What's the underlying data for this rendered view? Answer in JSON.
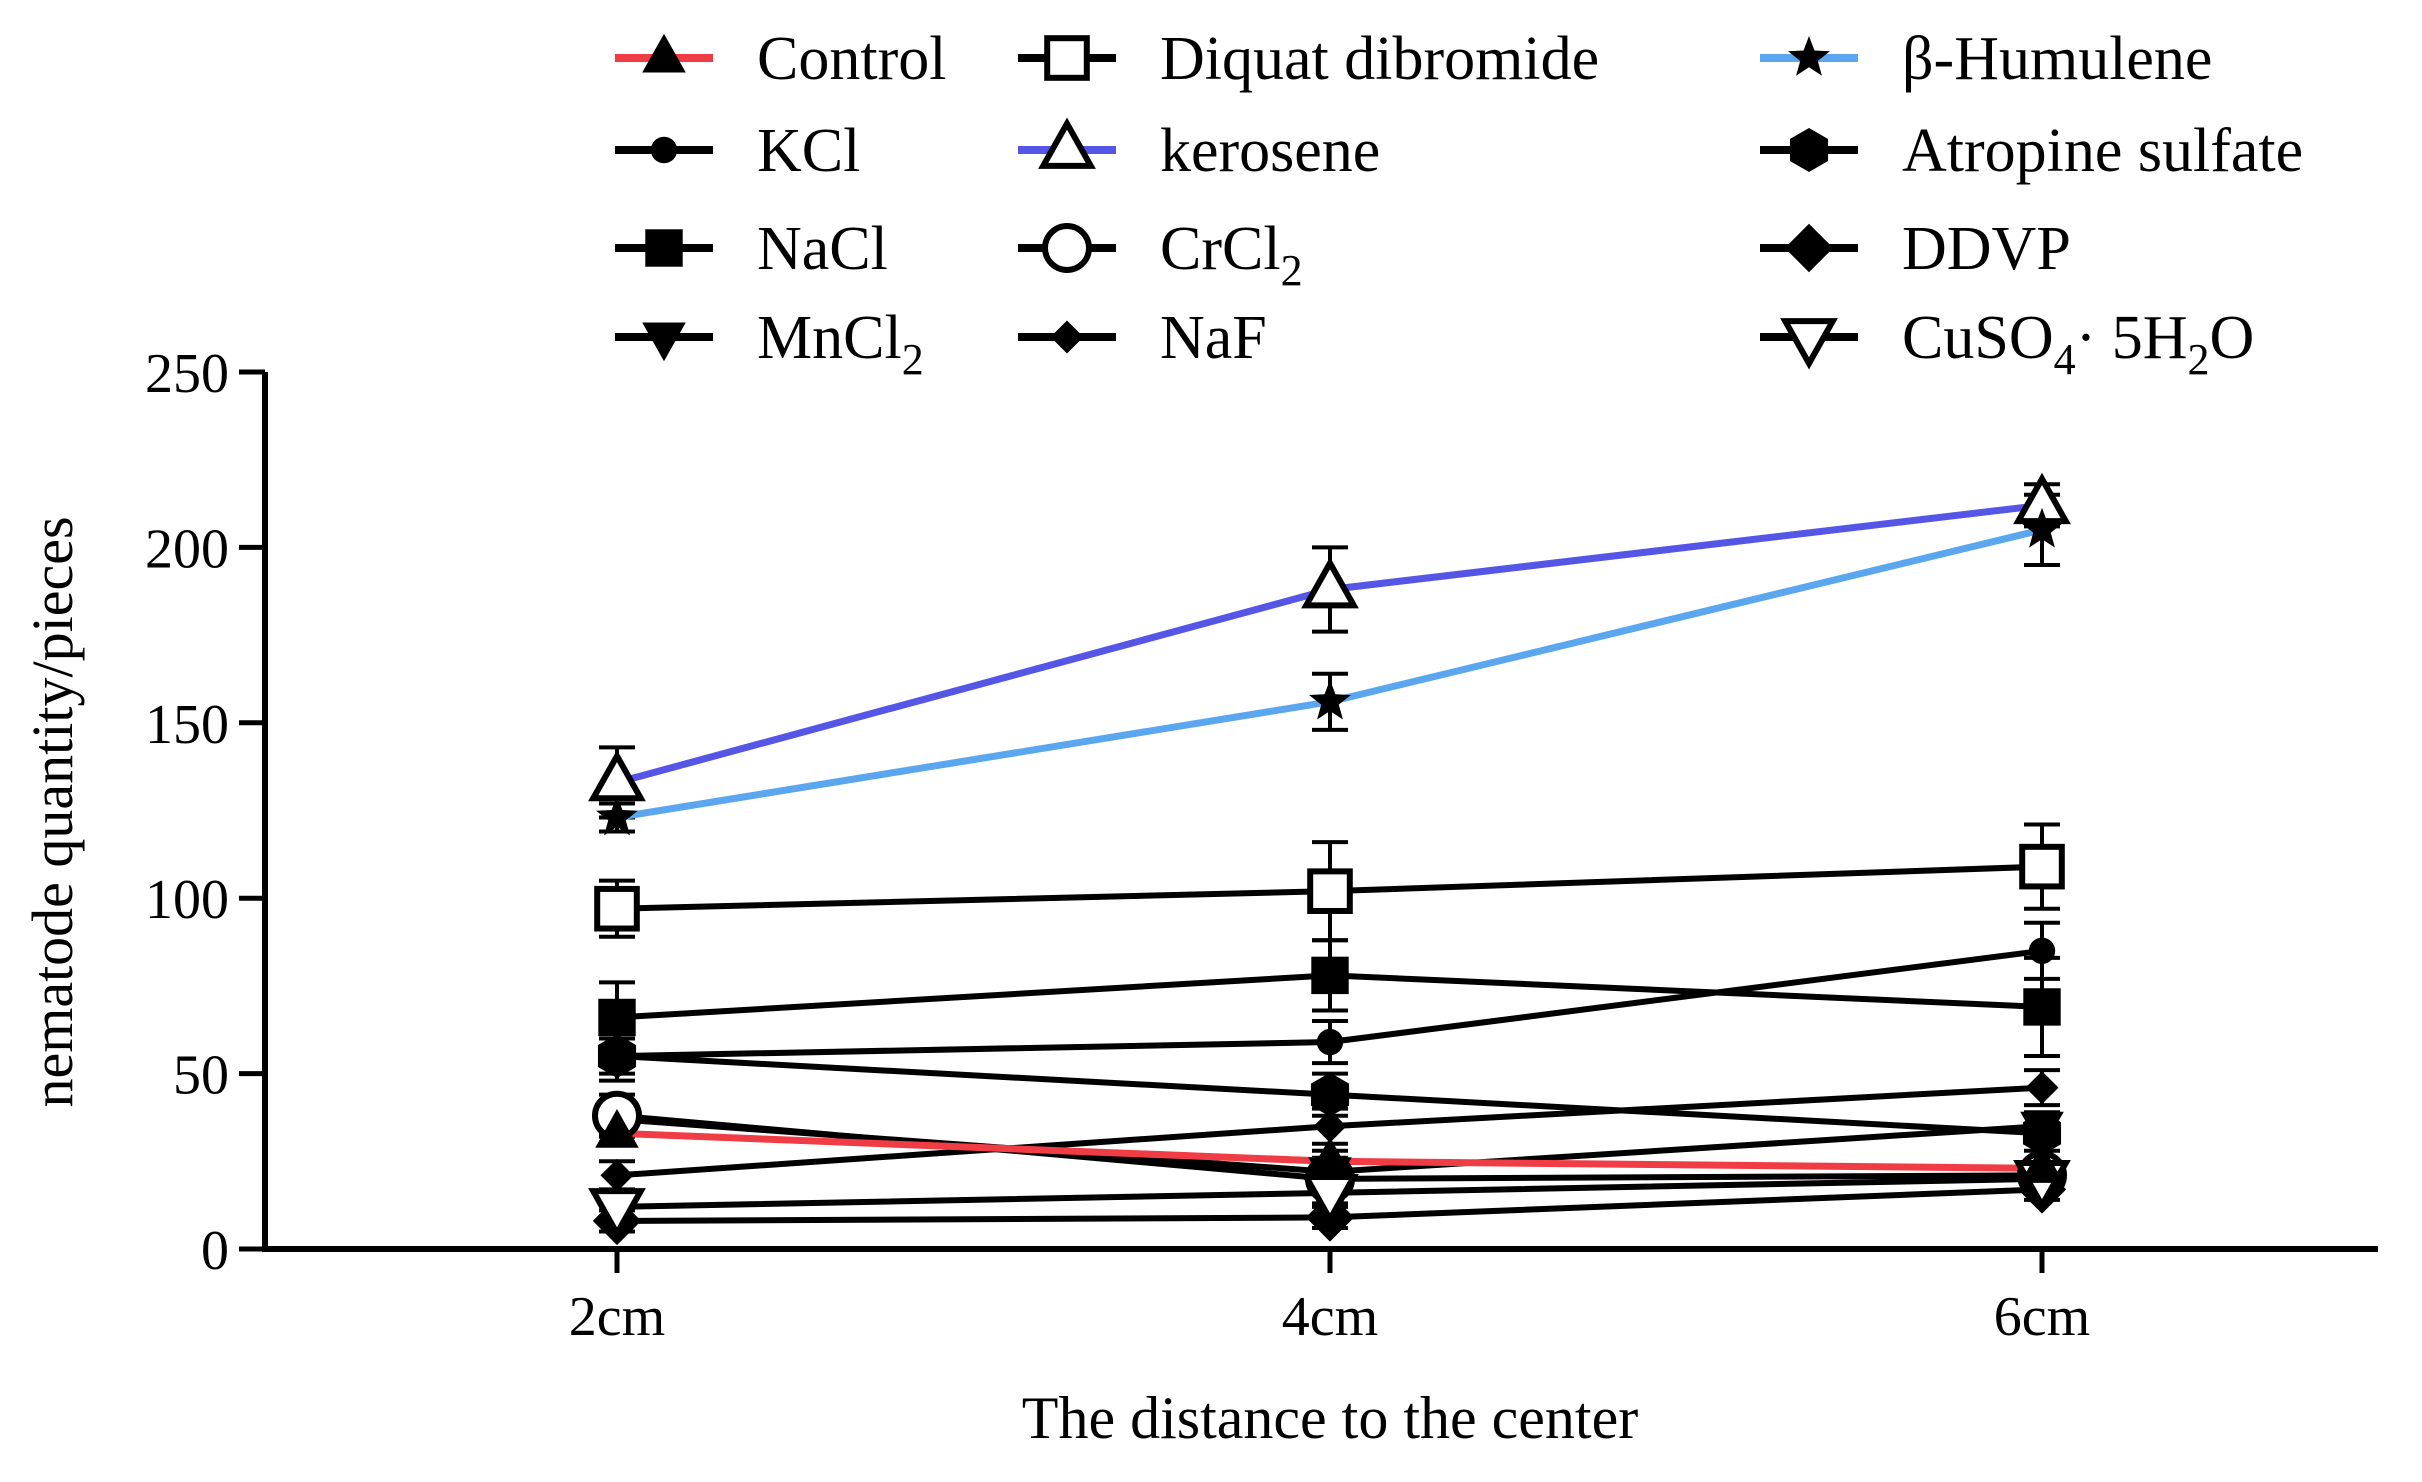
{
  "chart_data": {
    "type": "line",
    "categories": [
      "2cm",
      "4cm",
      "6cm"
    ],
    "xlabel": "The distance to the center",
    "ylabel": "nematode quantity/pieces",
    "ylim": [
      0,
      250
    ],
    "yticks": [
      0,
      50,
      100,
      150,
      200,
      250
    ],
    "grid": false,
    "legend_position": "top",
    "series": [
      {
        "name": "Control",
        "marker": "triangle-filled",
        "color": "#f03c44",
        "values": [
          33,
          25,
          23
        ],
        "errors": [
          3,
          3,
          2
        ]
      },
      {
        "name": "KCl",
        "marker": "circle-filled-small",
        "color": "#000000",
        "values": [
          55,
          59,
          85
        ],
        "errors": [
          7,
          6,
          8
        ]
      },
      {
        "name": "NaCl",
        "marker": "square-filled",
        "color": "#000000",
        "values": [
          66,
          78,
          69
        ],
        "errors": [
          10,
          10,
          14
        ]
      },
      {
        "name": "MnCl",
        "name_subscript": "2",
        "marker": "triangle-down-filled",
        "color": "#000000",
        "values": [
          37,
          22,
          35
        ],
        "errors": [
          4,
          4,
          4
        ]
      },
      {
        "name": "Diquat dibromide",
        "marker": "square-open",
        "color": "#000000",
        "values": [
          97,
          102,
          109
        ],
        "errors": [
          8,
          14,
          12
        ]
      },
      {
        "name": "kerosene",
        "marker": "triangle-open",
        "color": "#5555e6",
        "values": [
          133,
          188,
          212
        ],
        "errors": [
          10,
          12,
          6
        ]
      },
      {
        "name": "CrCl",
        "name_subscript": "2",
        "marker": "circle-open",
        "color": "#000000",
        "values": [
          38,
          20,
          21
        ],
        "errors": [
          6,
          4,
          3
        ]
      },
      {
        "name": "NaF",
        "marker": "diamond-small",
        "color": "#000000",
        "values": [
          21,
          35,
          46
        ],
        "errors": [
          4,
          5,
          5
        ]
      },
      {
        "name": "β-Humulene",
        "marker": "star",
        "color": "#5aa7ef",
        "values": [
          123,
          156,
          205
        ],
        "errors": [
          4,
          8,
          10
        ]
      },
      {
        "name": "Atropine sulfate",
        "marker": "hexagon-filled",
        "color": "#000000",
        "values": [
          55,
          44,
          33
        ],
        "errors": [
          5,
          6,
          5
        ]
      },
      {
        "name": "DDVP",
        "marker": "diamond-filled",
        "color": "#000000",
        "values": [
          8,
          9,
          17
        ],
        "errors": [
          3,
          3,
          3
        ]
      },
      {
        "name": "CuSO",
        "name_subscript": "4",
        "name_suffix": "· 5H",
        "name_subscript2": "2",
        "name_suffix2": "O",
        "marker": "triangle-down-open",
        "color": "#000000",
        "values": [
          12,
          16,
          20
        ],
        "errors": [
          3,
          3,
          3
        ]
      }
    ]
  }
}
